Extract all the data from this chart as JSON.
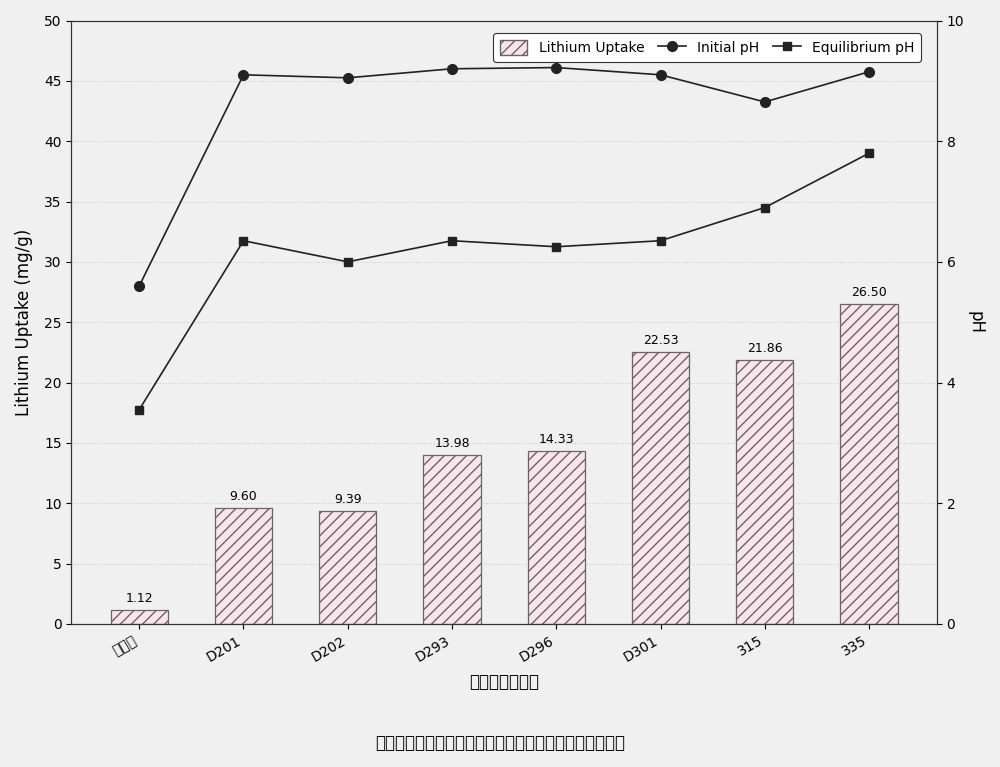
{
  "categories": [
    "无树脂",
    "D201",
    "D202",
    "D293",
    "D296",
    "D301",
    "315",
    "335"
  ],
  "bar_values": [
    1.12,
    9.6,
    9.39,
    13.98,
    14.33,
    22.53,
    21.86,
    26.5
  ],
  "initial_pH": [
    5.6,
    9.1,
    9.05,
    9.2,
    9.22,
    9.1,
    8.65,
    9.15
  ],
  "equilibrium_pH": [
    3.55,
    6.35,
    6.0,
    6.35,
    6.25,
    6.35,
    6.9,
    7.8
  ],
  "xlabel": "添加树脂品牌号",
  "ylabel_left": "Lithium Uptake (mg/g)",
  "ylabel_right": "pH",
  "title": "碱性树脂添加后对钓系锂离子筛吸附卢水中锂性能的强化",
  "ylim_left": [
    0,
    50
  ],
  "ylim_right": [
    0,
    10
  ],
  "bar_color": "#ffffff",
  "bar_hatch": "///",
  "bar_edgecolor": "#666666",
  "line1_color": "#222222",
  "line2_color": "#222222",
  "marker1": "o",
  "marker2": "s",
  "legend_labels": [
    "Lithium Uptake",
    "Initial pH",
    "Equilibrium pH"
  ],
  "bar_label_values": [
    "1.12",
    "9.60",
    "9.39",
    "13.98",
    "14.33",
    "22.53",
    "21.86",
    "26.50"
  ],
  "figsize": [
    10.0,
    7.67
  ],
  "dpi": 100,
  "bg_color": "#f0f0f0"
}
